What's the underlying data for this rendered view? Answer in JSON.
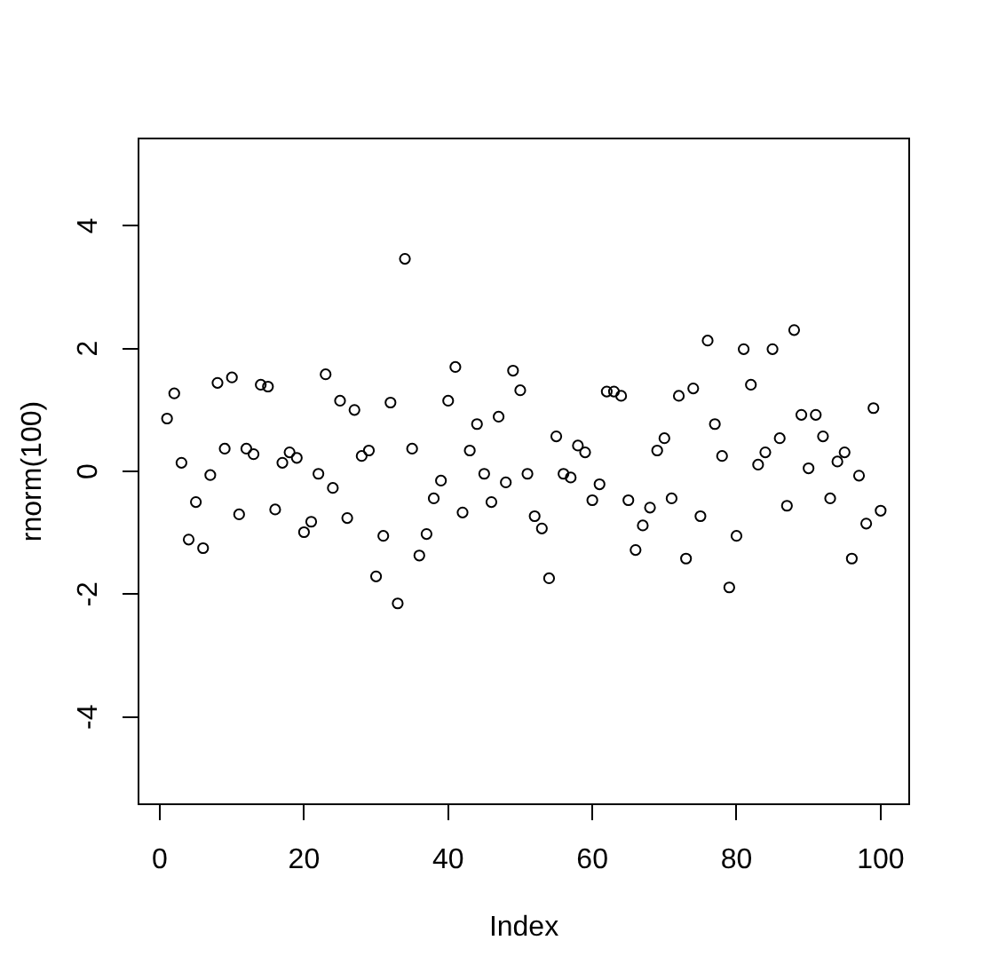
{
  "chart_data": {
    "type": "scatter",
    "xlabel": "Index",
    "ylabel": "rnorm(100)",
    "x": [
      1,
      2,
      3,
      4,
      5,
      6,
      7,
      8,
      9,
      10,
      11,
      12,
      13,
      14,
      15,
      16,
      17,
      18,
      19,
      20,
      21,
      22,
      23,
      24,
      25,
      26,
      27,
      28,
      29,
      30,
      31,
      32,
      33,
      34,
      35,
      36,
      37,
      38,
      39,
      40,
      41,
      42,
      43,
      44,
      45,
      46,
      47,
      48,
      49,
      50,
      51,
      52,
      53,
      54,
      55,
      56,
      57,
      58,
      59,
      60,
      61,
      62,
      63,
      64,
      65,
      66,
      67,
      68,
      69,
      70,
      71,
      72,
      73,
      74,
      75,
      76,
      77,
      78,
      79,
      80,
      81,
      82,
      83,
      84,
      85,
      86,
      87,
      88,
      89,
      90,
      91,
      92,
      93,
      94,
      95,
      96,
      97,
      98,
      99,
      100
    ],
    "series": [
      {
        "color": "#000000",
        "values": [
          0.86,
          1.27,
          0.14,
          -1.11,
          -0.5,
          -1.25,
          -0.06,
          1.44,
          0.37,
          1.53,
          -0.7,
          0.37,
          0.28,
          1.41,
          1.38,
          -0.62,
          0.14,
          0.31,
          0.22,
          -0.99,
          -0.82,
          -0.04,
          1.58,
          -0.27,
          1.15,
          -0.76,
          1.0,
          0.25,
          0.34,
          -1.71,
          -1.05,
          1.12,
          -2.15,
          3.46,
          0.37,
          -1.37,
          -1.02,
          -0.44,
          -0.15,
          1.15,
          1.7,
          -0.67,
          0.34,
          0.77,
          -0.04,
          -0.5,
          0.89,
          -0.18,
          1.64,
          1.32,
          -0.04,
          -0.73,
          -0.93,
          -1.74,
          0.57,
          -0.04,
          -0.1,
          0.42,
          0.31,
          -0.47,
          -0.21,
          1.3,
          1.3,
          1.23,
          -0.47,
          -1.28,
          -0.88,
          -0.59,
          0.34,
          0.54,
          -0.44,
          1.23,
          -1.42,
          1.35,
          -0.73,
          2.13,
          0.77,
          0.25,
          -1.89,
          -1.05,
          1.99,
          1.41,
          0.11,
          0.31,
          1.99,
          0.54,
          -0.56,
          2.3,
          0.92,
          0.05,
          0.92,
          0.57,
          -0.44,
          0.16,
          0.31,
          -1.42,
          -0.07,
          -0.85,
          1.03,
          -0.64
        ]
      }
    ],
    "xlim": [
      -2.96,
      103.96
    ],
    "ylim": [
      -5.42,
      5.42
    ],
    "xticks": [
      0,
      20,
      40,
      60,
      80,
      100
    ],
    "yticks": [
      -4,
      -2,
      0,
      2,
      4
    ],
    "marker": "circle",
    "grid": false
  }
}
